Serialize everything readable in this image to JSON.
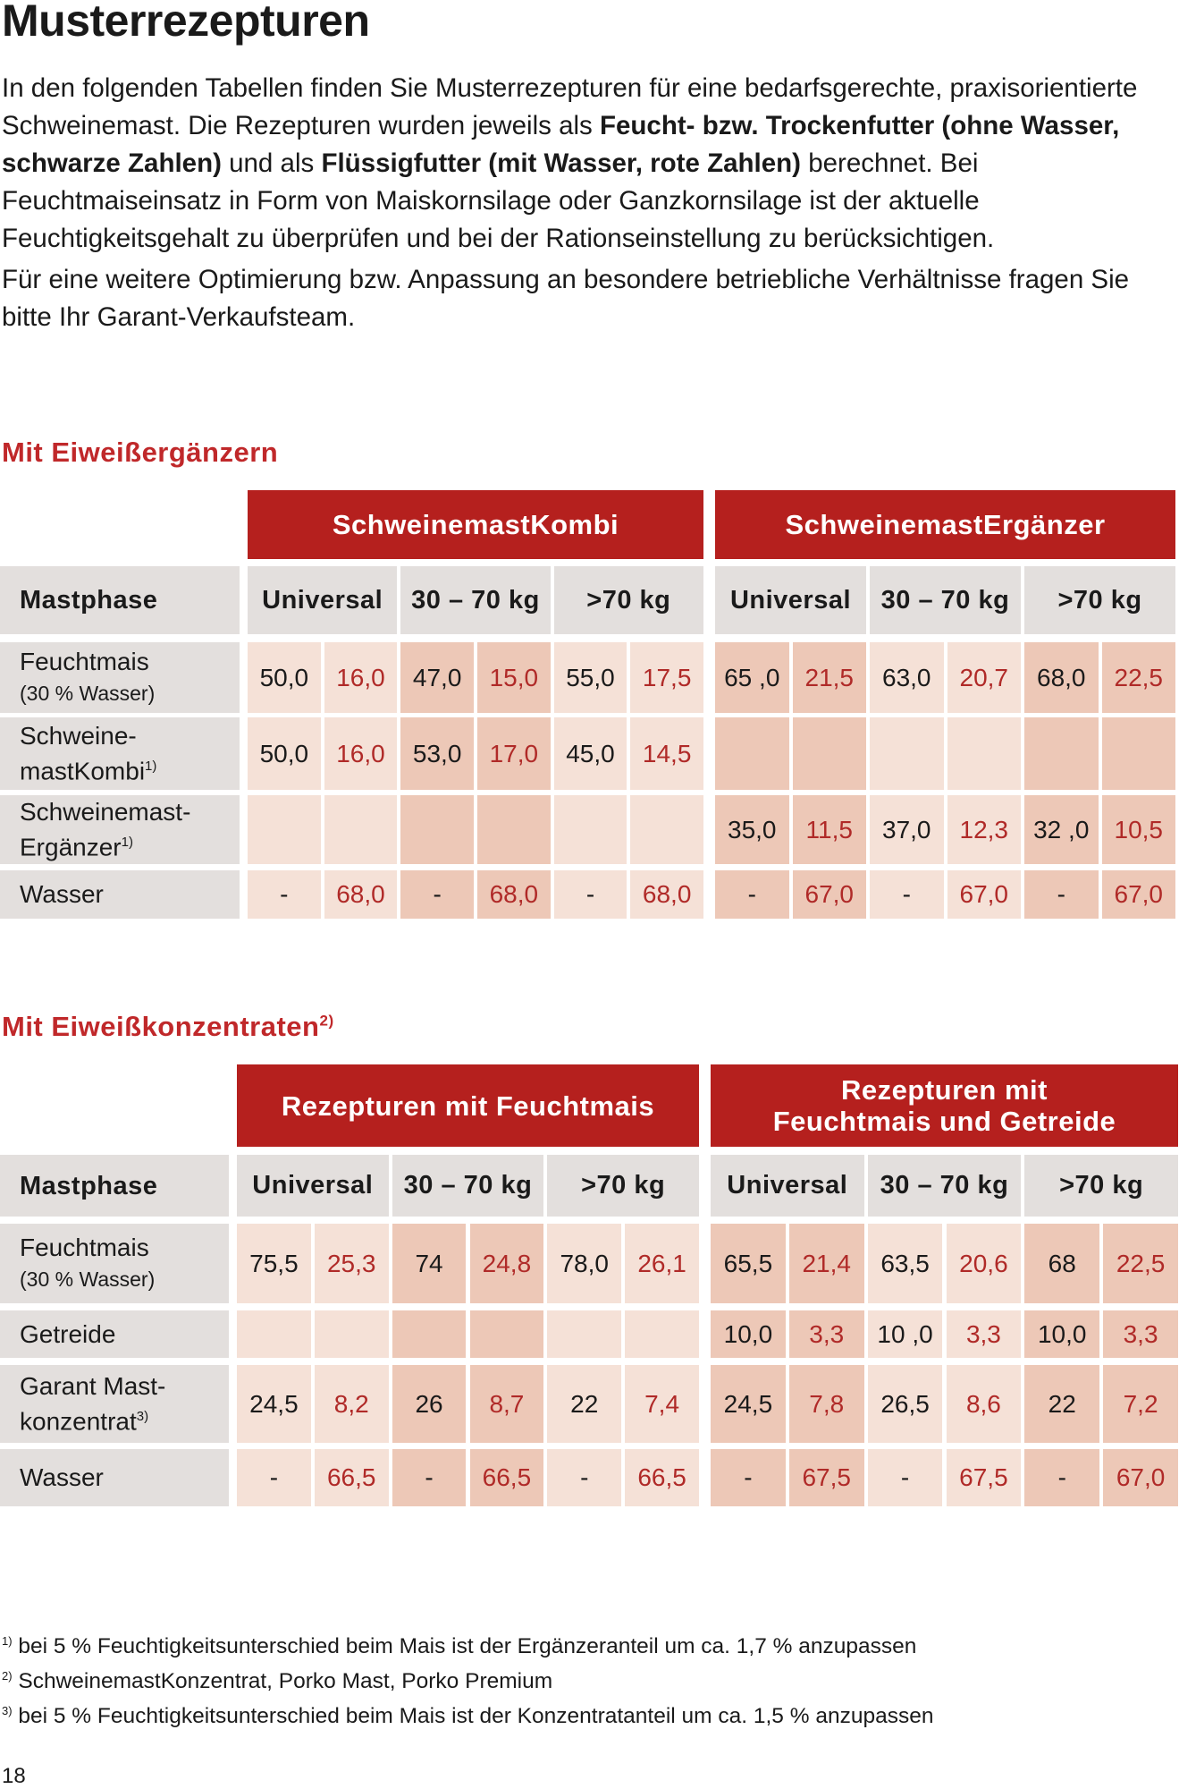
{
  "title": "Musterrezepturen",
  "intro": {
    "p1": [
      {
        "t": "In den folgenden Tabellen finden Sie Musterrezepturen für eine bedarfsgerechte, praxisorientierte Schweinemast. Die Rezepturen wurden jeweils als ",
        "b": false
      },
      {
        "t": "Feucht- bzw. Trockenfutter (ohne Wasser, schwarze Zahlen)",
        "b": true
      },
      {
        "t": " und als ",
        "b": false
      },
      {
        "t": "Flüssigfutter (mit Wasser, rote Zahlen)",
        "b": true
      },
      {
        "t": " berechnet. Bei Feuchtmaiseinsatz in Form von Maiskornsilage oder Ganzkornsilage ist der aktuelle Feuchtigkeitsgehalt zu überprüfen und bei der Rationseinstellung zu berücksichtigen.",
        "b": false
      }
    ],
    "p2": "Für eine weitere Optimierung bzw. Anpassung an besondere betriebliche Verhältnisse fragen Sie bitte Ihr Garant-Verkaufsteam."
  },
  "colors": {
    "header_red": "#b5201e",
    "heading_red": "#c0282a",
    "gray": "#e3dfdd",
    "cell_light": "#f5e1d7",
    "cell_dark": "#edc8b7",
    "liquid_value": "#b02a28"
  },
  "tables": [
    {
      "heading": "Mit Eiweißergänzern",
      "heading_sup": "",
      "groups": [
        "SchweinemastKombi",
        "SchweinemastErgänzer"
      ],
      "phase_label": "Mastphase",
      "phases": [
        "Universal",
        "30 – 70 kg",
        ">70 kg"
      ],
      "rows": [
        {
          "label": "Feuchtmais",
          "sub": "(30 % Wasser)",
          "sup": "",
          "values": [
            "50,0",
            "16,0",
            "47,0",
            "15,0",
            "55,0",
            "17,5",
            "65 ,0",
            "21,5",
            "63,0",
            "20,7",
            "68,0",
            "22,5"
          ]
        },
        {
          "label": "Schweine-",
          "label2": "mastKombi",
          "sup": "1)",
          "values": [
            "50,0",
            "16,0",
            "53,0",
            "17,0",
            "45,0",
            "14,5",
            "",
            "",
            "",
            "",
            "",
            ""
          ]
        },
        {
          "label": "Schweinemast-",
          "label2": "Ergänzer",
          "sup": "1)",
          "values": [
            "",
            "",
            "",
            "",
            "",
            "",
            "35,0",
            "11,5",
            "37,0",
            "12,3",
            "32 ,0",
            "10,5"
          ]
        },
        {
          "label": "Wasser",
          "sup": "",
          "values": [
            "-",
            "68,0",
            "-",
            "68,0",
            "-",
            "68,0",
            "-",
            "67,0",
            "-",
            "67,0",
            "-",
            "67,0"
          ]
        }
      ]
    },
    {
      "heading": "Mit Eiweißkonzentraten",
      "heading_sup": "2)",
      "groups": [
        "Rezepturen mit Feuchtmais",
        "Rezepturen mit\nFeuchtmais und Getreide"
      ],
      "phase_label": "Mastphase",
      "phases": [
        "Universal",
        "30 – 70 kg",
        ">70 kg"
      ],
      "rows": [
        {
          "label": "Feuchtmais",
          "sub": "(30 % Wasser)",
          "sup": "",
          "values": [
            "75,5",
            "25,3",
            "74",
            "24,8",
            "78,0",
            "26,1",
            "65,5",
            "21,4",
            "63,5",
            "20,6",
            "68",
            "22,5"
          ]
        },
        {
          "label": "Getreide",
          "sup": "",
          "values": [
            "",
            "",
            "",
            "",
            "",
            "",
            "10,0",
            "3,3",
            "10 ,0",
            "3,3",
            "10,0",
            "3,3"
          ]
        },
        {
          "label": "Garant Mast-",
          "label2": "konzentrat",
          "sup": "3)",
          "values": [
            "24,5",
            "8,2",
            "26",
            "8,7",
            "22",
            "7,4",
            "24,5",
            "7,8",
            "26,5",
            "8,6",
            "22",
            "7,2"
          ]
        },
        {
          "label": "Wasser",
          "sup": "",
          "values": [
            "-",
            "66,5",
            "-",
            "66,5",
            "-",
            "66,5",
            "-",
            "67,5",
            "-",
            "67,5",
            "-",
            "67,0"
          ]
        }
      ]
    }
  ],
  "footnotes": [
    {
      "mark": "1)",
      "text": " bei 5 % Feuchtigkeitsunterschied beim Mais ist der Ergänzeranteil um ca. 1,7 % anzupassen"
    },
    {
      "mark": "2)",
      "text": " SchweinemastKonzentrat, Porko Mast, Porko Premium"
    },
    {
      "mark": "3)",
      "text": " bei 5 % Feuchtigkeitsunterschied beim Mais ist der Konzentratanteil um ca. 1,5 % anzupassen"
    }
  ],
  "page_number": "18"
}
